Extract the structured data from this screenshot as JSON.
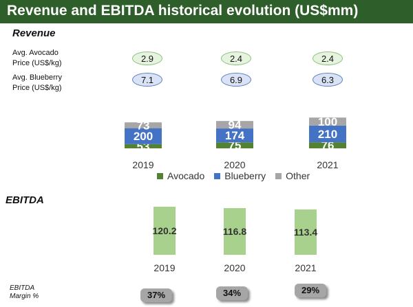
{
  "title": "Revenue and EBITDA historical evolution (US$mm)",
  "revenue_section": {
    "title": "Revenue",
    "avocado_price_label": [
      "Avg. Avocado",
      "Price (US$/kg)"
    ],
    "blueberry_price_label": [
      "Avg. Blueberry",
      "Price (US$/kg)"
    ],
    "avocado_prices": [
      "2.9",
      "2.4",
      "2.4"
    ],
    "blueberry_prices": [
      "7.1",
      "6.9",
      "6.3"
    ]
  },
  "ebitda_section": {
    "title": "EBITDA",
    "margin_label": [
      "EBITDA",
      "Margin %"
    ],
    "margins": [
      "37%",
      "34%",
      "29%"
    ]
  },
  "colors": {
    "avocado": "#548235",
    "blueberry": "#4472c4",
    "other": "#a6a6a6",
    "ebitda": "#a9d18e",
    "title_bar": "#2e5e2a"
  },
  "chart_data": [
    {
      "type": "bar",
      "stacked": true,
      "categories": [
        "2019",
        "2020",
        "2021"
      ],
      "series": [
        {
          "name": "Avocado",
          "values": [
            53,
            75,
            76
          ]
        },
        {
          "name": "Blueberry",
          "values": [
            200,
            174,
            210
          ]
        },
        {
          "name": "Other",
          "values": [
            73,
            94,
            100
          ]
        }
      ],
      "legend": "bottom"
    },
    {
      "type": "bar",
      "categories": [
        "2019",
        "2020",
        "2021"
      ],
      "series": [
        {
          "values": [
            120.2,
            116.8,
            113.4
          ]
        }
      ]
    }
  ]
}
